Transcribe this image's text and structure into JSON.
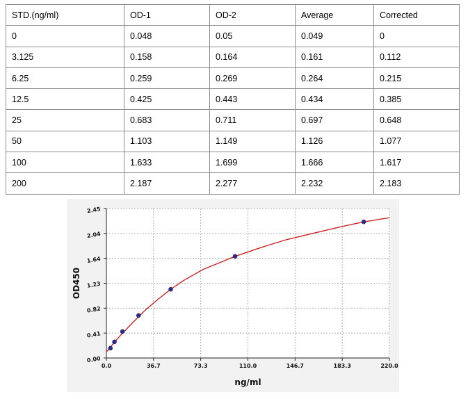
{
  "table": {
    "headers": [
      "STD.(ng/ml)",
      "OD-1",
      "OD-2",
      "Average",
      "Corrected"
    ],
    "rows": [
      [
        "0",
        "0.048",
        "0.05",
        "0.049",
        "0"
      ],
      [
        "3.125",
        "0.158",
        "0.164",
        "0.161",
        "0.112"
      ],
      [
        "6.25",
        "0.259",
        "0.269",
        "0.264",
        "0.215"
      ],
      [
        "12.5",
        "0.425",
        "0.443",
        "0.434",
        "0.385"
      ],
      [
        "25",
        "0.683",
        "0.711",
        "0.697",
        "0.648"
      ],
      [
        "50",
        "1.103",
        "1.149",
        "1.126",
        "1.077"
      ],
      [
        "100",
        "1.633",
        "1.699",
        "1.666",
        "1.617"
      ],
      [
        "200",
        "2.187",
        "2.277",
        "2.232",
        "2.183"
      ]
    ]
  },
  "chart_data": {
    "type": "scatter",
    "xlabel": "ng/ml",
    "ylabel": "OD450",
    "xlim": [
      0,
      220
    ],
    "ylim": [
      0,
      2.45
    ],
    "x_ticks": [
      "0.0",
      "36.7",
      "73.3",
      "110.0",
      "146.7",
      "183.3",
      "220.0"
    ],
    "y_ticks": [
      "0.00",
      "0.41",
      "0.82",
      "1.23",
      "1.64",
      "2.04",
      "2.45"
    ],
    "grid": true,
    "points": {
      "x": [
        3.125,
        6.25,
        12.5,
        25,
        50,
        100,
        200
      ],
      "y": [
        0.161,
        0.264,
        0.434,
        0.697,
        1.126,
        1.666,
        2.232
      ]
    },
    "fit_curve": {
      "x": [
        0,
        2,
        4,
        6,
        8,
        10,
        15,
        20,
        30,
        40,
        50,
        60,
        75,
        90,
        100,
        120,
        140,
        160,
        180,
        200,
        220
      ],
      "y": [
        0.1,
        0.145,
        0.2,
        0.25,
        0.3,
        0.35,
        0.46,
        0.57,
        0.78,
        0.96,
        1.126,
        1.27,
        1.45,
        1.58,
        1.666,
        1.81,
        1.94,
        2.04,
        2.14,
        2.232,
        2.3
      ]
    },
    "colors": {
      "curve": "#cc2222",
      "points": "#2a2a9a",
      "grid": "#a0a0a0"
    }
  }
}
